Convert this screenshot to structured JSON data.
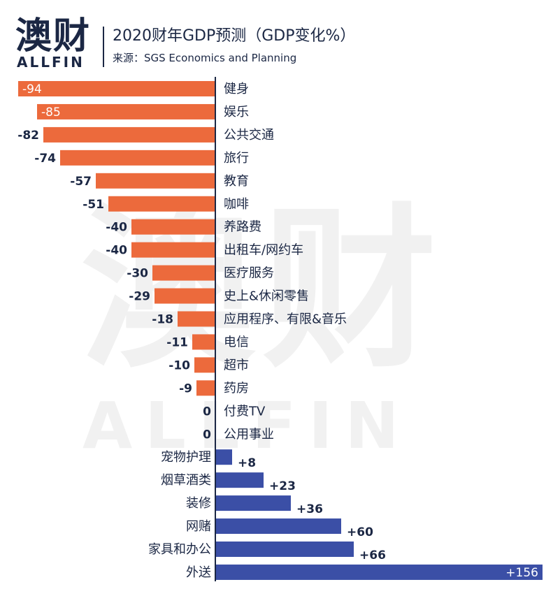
{
  "header": {
    "logo_cn": "澳财",
    "logo_en": "ALLFIN",
    "title": "2020财年GDP预测（GDP变化%）",
    "source": "来源：SGS Economics and Planning"
  },
  "watermark": {
    "cn": "澳财",
    "en": "ALLFIN"
  },
  "colors": {
    "negative": "#ec6a3c",
    "positive": "#3b4fa6",
    "text": "#1b2744",
    "axis": "#1b2744"
  },
  "chart_data": {
    "type": "bar",
    "orientation": "horizontal",
    "title": "2020财年GDP预测（GDP变化%）",
    "source": "来源：SGS Economics and Planning",
    "categories": [
      "健身",
      "娱乐",
      "公共交通",
      "旅行",
      "教育",
      "咖啡",
      "养路费",
      "出租车/网约车",
      "医疗服务",
      "史上&休闲零售",
      "应用程序、有限&音乐",
      "电信",
      "超市",
      "药房",
      "付费TV",
      "公用事业",
      "宠物护理",
      "烟草酒类",
      "装修",
      "网赌",
      "家具和办公",
      "外送"
    ],
    "values": [
      -94,
      -85,
      -82,
      -74,
      -57,
      -51,
      -40,
      -40,
      -30,
      -29,
      -18,
      -11,
      -10,
      -9,
      0,
      0,
      8,
      23,
      36,
      60,
      66,
      156
    ],
    "value_labels": [
      "-94",
      "-85",
      "-82",
      "-74",
      "-57",
      "-51",
      "-40",
      "-40",
      "-30",
      "-29",
      "-18",
      "-11",
      "-10",
      "-9",
      "0",
      "0",
      "+8",
      "+23",
      "+36",
      "+60",
      "+66",
      "+156"
    ],
    "xlim": [
      -100,
      170
    ],
    "grid": false,
    "legend": false
  }
}
